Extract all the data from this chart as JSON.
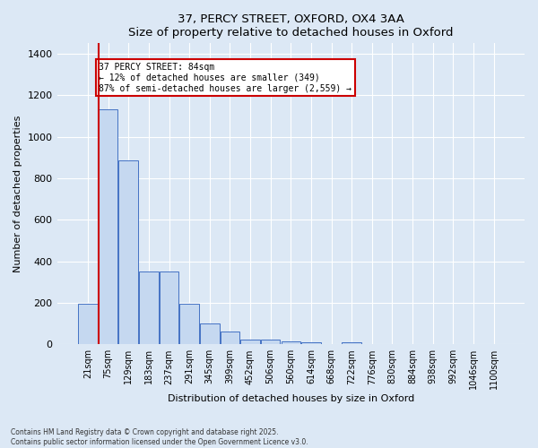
{
  "title_line1": "37, PERCY STREET, OXFORD, OX4 3AA",
  "title_line2": "Size of property relative to detached houses in Oxford",
  "xlabel": "Distribution of detached houses by size in Oxford",
  "ylabel": "Number of detached properties",
  "categories": [
    "21sqm",
    "75sqm",
    "129sqm",
    "183sqm",
    "237sqm",
    "291sqm",
    "345sqm",
    "399sqm",
    "452sqm",
    "506sqm",
    "560sqm",
    "614sqm",
    "668sqm",
    "722sqm",
    "776sqm",
    "830sqm",
    "884sqm",
    "938sqm",
    "992sqm",
    "1046sqm",
    "1100sqm"
  ],
  "values": [
    195,
    1130,
    885,
    350,
    350,
    195,
    100,
    60,
    25,
    22,
    15,
    8,
    0,
    10,
    0,
    0,
    0,
    0,
    0,
    0,
    0
  ],
  "bar_color": "#c5d8f0",
  "bar_edge_color": "#4472c4",
  "marker_line_color": "#cc0000",
  "annotation_line1": "37 PERCY STREET: 84sqm",
  "annotation_line2": "← 12% of detached houses are smaller (349)",
  "annotation_line3": "87% of semi-detached houses are larger (2,559) →",
  "box_color": "#cc0000",
  "ylim": [
    0,
    1450
  ],
  "yticks": [
    0,
    200,
    400,
    600,
    800,
    1000,
    1200,
    1400
  ],
  "background_color": "#dce8f5",
  "grid_color": "#ffffff",
  "footer_line1": "Contains HM Land Registry data © Crown copyright and database right 2025.",
  "footer_line2": "Contains public sector information licensed under the Open Government Licence v3.0."
}
